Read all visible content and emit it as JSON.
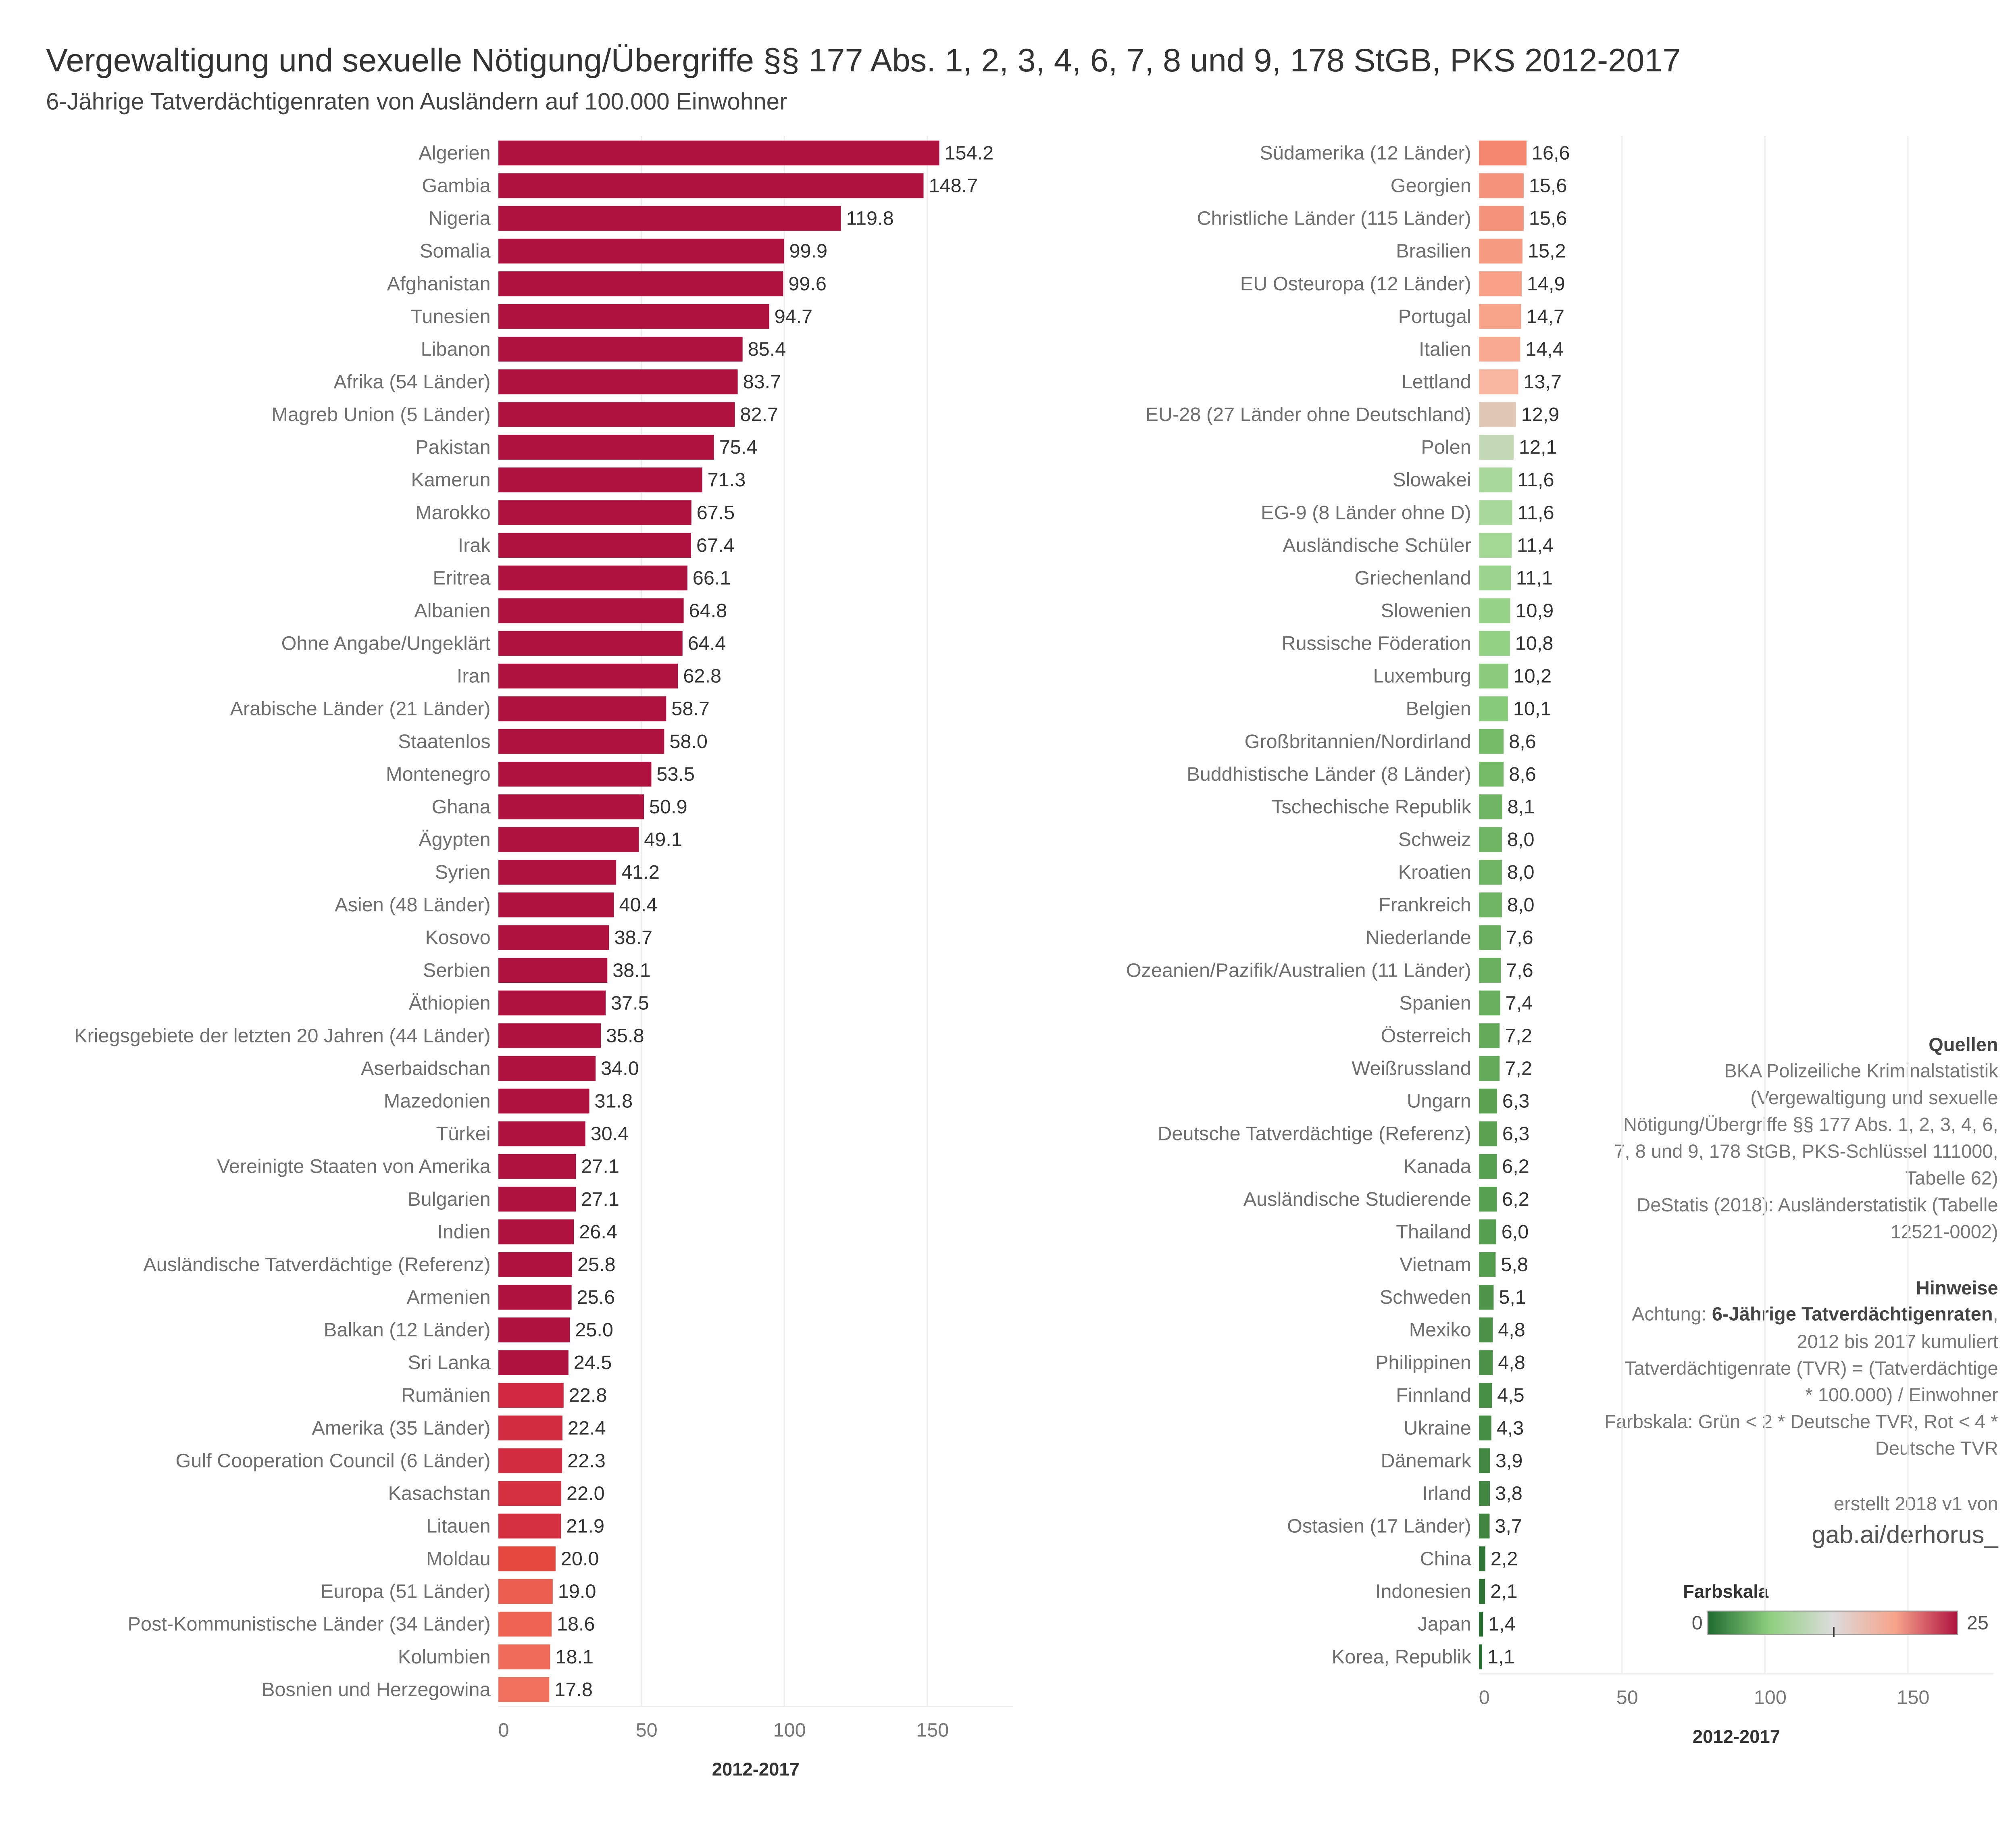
{
  "header": {
    "title": "Vergewaltigung und sexuelle Nötigung/Übergriffe §§ 177 Abs. 1, 2, 3, 4, 6, 7, 8 und 9, 178 StGB, PKS 2012-2017",
    "subtitle": "6-Jährige Tatverdächtigenraten von Ausländern auf 100.000 Einwohner"
  },
  "chart_data": [
    {
      "type": "bar",
      "orientation": "horizontal",
      "xlabel": "2012-2017",
      "xlim": [
        0,
        180
      ],
      "xticks": [
        0,
        50,
        100,
        150
      ],
      "grid": true,
      "categories": [
        "Algerien",
        "Gambia",
        "Nigeria",
        "Somalia",
        "Afghanistan",
        "Tunesien",
        "Libanon",
        "Afrika (54 Länder)",
        "Magreb Union (5 Länder)",
        "Pakistan",
        "Kamerun",
        "Marokko",
        "Irak",
        "Eritrea",
        "Albanien",
        "Ohne Angabe/Ungeklärt",
        "Iran",
        "Arabische Länder (21 Länder)",
        "Staatenlos",
        "Montenegro",
        "Ghana",
        "Ägypten",
        "Syrien",
        "Asien (48 Länder)",
        "Kosovo",
        "Serbien",
        "Äthiopien",
        "Kriegsgebiete der letzten 20 Jahren (44 Länder)",
        "Aserbaidschan",
        "Mazedonien",
        "Türkei",
        "Vereinigte Staaten von Amerika",
        "Bulgarien",
        "Indien",
        "Ausländische Tatverdächtige (Referenz)",
        "Armenien",
        "Balkan (12 Länder)",
        "Sri Lanka",
        "Rumänien",
        "Amerika (35 Länder)",
        "Gulf Cooperation Council (6 Länder)",
        "Kasachstan",
        "Litauen",
        "Moldau",
        "Europa (51 Länder)",
        "Post-Kommunistische Länder (34 Länder)",
        "Kolumbien",
        "Bosnien und Herzegowina"
      ],
      "values": [
        154.2,
        148.7,
        119.8,
        99.9,
        99.6,
        94.7,
        85.4,
        83.7,
        82.7,
        75.4,
        71.3,
        67.5,
        67.4,
        66.1,
        64.8,
        64.4,
        62.8,
        58.7,
        58.0,
        53.5,
        50.9,
        49.1,
        41.2,
        40.4,
        38.7,
        38.1,
        37.5,
        35.8,
        34.0,
        31.8,
        30.4,
        27.1,
        27.1,
        26.4,
        25.8,
        25.6,
        25.0,
        24.5,
        22.8,
        22.4,
        22.3,
        22.0,
        21.9,
        20.0,
        19.0,
        18.6,
        18.1,
        17.8
      ],
      "value_labels": [
        "154.2",
        "148.7",
        "119.8",
        "99.9",
        "99.6",
        "94.7",
        "85.4",
        "83.7",
        "82.7",
        "75.4",
        "71.3",
        "67.5",
        "67.4",
        "66.1",
        "64.8",
        "64.4",
        "62.8",
        "58.7",
        "58.0",
        "53.5",
        "50.9",
        "49.1",
        "41.2",
        "40.4",
        "38.7",
        "38.1",
        "37.5",
        "35.8",
        "34.0",
        "31.8",
        "30.4",
        "27.1",
        "27.1",
        "26.4",
        "25.8",
        "25.6",
        "25.0",
        "24.5",
        "22.8",
        "22.4",
        "22.3",
        "22.0",
        "21.9",
        "20.0",
        "19.0",
        "18.6",
        "18.1",
        "17.8"
      ],
      "colors": [
        "#b01240",
        "#b01240",
        "#b01240",
        "#b01240",
        "#b01240",
        "#b01240",
        "#b01240",
        "#b01240",
        "#b01240",
        "#b01240",
        "#b01240",
        "#b01240",
        "#b01240",
        "#b01240",
        "#b01240",
        "#b01240",
        "#b01240",
        "#b01240",
        "#b01240",
        "#b01240",
        "#b01240",
        "#b01240",
        "#b01240",
        "#b01240",
        "#b01240",
        "#b01240",
        "#b01240",
        "#b01240",
        "#b01240",
        "#b01240",
        "#b01240",
        "#b01240",
        "#b01240",
        "#b01240",
        "#b01240",
        "#b01240",
        "#b01240",
        "#b01240",
        "#d0293f",
        "#d22c40",
        "#d22c40",
        "#d4303f",
        "#d4303f",
        "#e5483f",
        "#ec5e4f",
        "#ee6453",
        "#f06c5a",
        "#f0705d"
      ]
    },
    {
      "type": "bar",
      "orientation": "horizontal",
      "xlabel": "2012-2017",
      "xlim": [
        0,
        180
      ],
      "xticks": [
        0,
        50,
        100,
        150
      ],
      "grid": true,
      "categories": [
        "Südamerika (12 Länder)",
        "Georgien",
        "Christliche Länder (115 Länder)",
        "Brasilien",
        "EU Osteuropa (12 Länder)",
        "Portugal",
        "Italien",
        "Lettland",
        "EU-28 (27 Länder ohne Deutschland)",
        "Polen",
        "Slowakei",
        "EG-9 (8 Länder ohne D)",
        "Ausländische Schüler",
        "Griechenland",
        "Slowenien",
        "Russische Föderation",
        "Luxemburg",
        "Belgien",
        "Großbritannien/Nordirland",
        "Buddhistische Länder (8 Länder)",
        "Tschechische Republik",
        "Schweiz",
        "Kroatien",
        "Frankreich",
        "Niederlande",
        "Ozeanien/Pazifik/Australien (11 Länder)",
        "Spanien",
        "Österreich",
        "Weißrussland",
        "Ungarn",
        "Deutsche Tatverdächtige (Referenz)",
        "Kanada",
        "Ausländische Studierende",
        "Thailand",
        "Vietnam",
        "Schweden",
        "Mexiko",
        "Philippinen",
        "Finnland",
        "Ukraine",
        "Dänemark",
        "Irland",
        "Ostasien (17 Länder)",
        "China",
        "Indonesien",
        "Japan",
        "Korea, Republik"
      ],
      "values": [
        16.6,
        15.6,
        15.6,
        15.2,
        14.9,
        14.7,
        14.4,
        13.7,
        12.9,
        12.1,
        11.6,
        11.6,
        11.4,
        11.1,
        10.9,
        10.8,
        10.2,
        10.1,
        8.6,
        8.6,
        8.1,
        8.0,
        8.0,
        8.0,
        7.6,
        7.6,
        7.4,
        7.2,
        7.2,
        6.3,
        6.3,
        6.2,
        6.2,
        6.0,
        5.8,
        5.1,
        4.8,
        4.8,
        4.5,
        4.3,
        3.9,
        3.8,
        3.7,
        2.2,
        2.1,
        1.4,
        1.1
      ],
      "value_labels": [
        "16,6",
        "15,6",
        "15,6",
        "15,2",
        "14,9",
        "14,7",
        "14,4",
        "13,7",
        "12,9",
        "12,1",
        "11,6",
        "11,6",
        "11,4",
        "11,1",
        "10,9",
        "10,8",
        "10,2",
        "10,1",
        "8,6",
        "8,6",
        "8,1",
        "8,0",
        "8,0",
        "8,0",
        "7,6",
        "7,6",
        "7,4",
        "7,2",
        "7,2",
        "6,3",
        "6,3",
        "6,2",
        "6,2",
        "6,0",
        "5,8",
        "5,1",
        "4,8",
        "4,8",
        "4,5",
        "4,3",
        "3,9",
        "3,8",
        "3,7",
        "2,2",
        "2,1",
        "1,4",
        "1,1"
      ],
      "colors": [
        "#f58670",
        "#f6937b",
        "#f6937b",
        "#f79a82",
        "#f8a088",
        "#f8a48b",
        "#f8a990",
        "#f8b5a0",
        "#e0c6b4",
        "#c3d9b5",
        "#a9d99a",
        "#a9d99a",
        "#a3d794",
        "#9bd48c",
        "#96d288",
        "#93d185",
        "#8acc7c",
        "#88cb7a",
        "#76bb68",
        "#76bb68",
        "#70b664",
        "#6fb563",
        "#6fb563",
        "#6fb563",
        "#6ab15f",
        "#6ab15f",
        "#67ae5d",
        "#64ac5b",
        "#64ac5b",
        "#5aa152",
        "#5aa152",
        "#58a051",
        "#58a051",
        "#569e50",
        "#549c4e",
        "#4e954a",
        "#4b9248",
        "#4b9248",
        "#488f46",
        "#468d45",
        "#428842",
        "#418741",
        "#408640",
        "#2f7636",
        "#2e7535",
        "#287032",
        "#256d30"
      ]
    }
  ],
  "notes": {
    "sources": {
      "heading": "Quellen",
      "lines": [
        "BKA Polizeiliche Kriminalstatistik",
        "(Vergewaltigung und sexuelle",
        "Nötigung/Übergriffe §§ 177 Abs. 1, 2, 3, 4, 6,",
        "7, 8 und 9, 178 StGB, PKS-Schlüssel 111000,",
        "Tabelle 62)",
        "DeStatis (2018): Ausländerstatistik (Tabelle",
        "12521-0002)"
      ]
    },
    "hints": {
      "heading": "Hinweise",
      "lead": "Achtung:",
      "emphasis": "6-Jährige Tatverdächtigenraten",
      "lead_end": ",",
      "lines": [
        "2012 bis 2017 kumuliert",
        "Tatverdächtigenrate (TVR) = (Tatverdächtige",
        "* 100.000) / Einwohner",
        "Farbskala: Grün < 2 * Deutsche TVR, Rot < 4 *",
        "Deutsche TVR"
      ]
    },
    "credit": {
      "line": "erstellt 2018 v1 von",
      "handle": "gab.ai/derhorus_"
    }
  },
  "color_scale": {
    "title": "Farbskala",
    "min": 0,
    "max": 25,
    "marker": 12.6,
    "colors": [
      "#1e6b30",
      "#8fd07f",
      "#dcdcdc",
      "#f7a48b",
      "#b01240"
    ]
  }
}
